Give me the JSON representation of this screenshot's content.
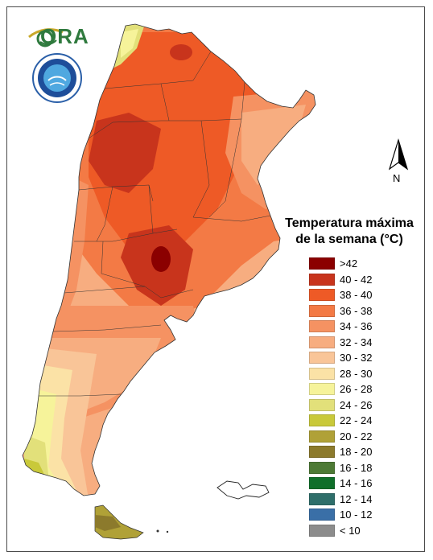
{
  "map": {
    "title": "Temperatura máxima\nde la semana (°C)",
    "north_label": "N",
    "logos": {
      "ora_text": "ORA",
      "smn_icon": "smn-seal-icon"
    },
    "legend": [
      {
        "label": ">42",
        "color": "#8b0000"
      },
      {
        "label": "40 - 42",
        "color": "#c8341c"
      },
      {
        "label": "38 - 40",
        "color": "#ee5a26"
      },
      {
        "label": "36 - 38",
        "color": "#f37a45"
      },
      {
        "label": "34 - 36",
        "color": "#f59262"
      },
      {
        "label": "32 - 34",
        "color": "#f7ad80"
      },
      {
        "label": "30 - 32",
        "color": "#f9c598"
      },
      {
        "label": "28 - 30",
        "color": "#fbe2a6"
      },
      {
        "label": "26 - 28",
        "color": "#f6f39a"
      },
      {
        "label": "24 - 26",
        "color": "#e2e07a"
      },
      {
        "label": "22 - 24",
        "color": "#c9c93a"
      },
      {
        "label": "20 - 22",
        "color": "#b0a137"
      },
      {
        "label": "18 - 20",
        "color": "#8c7a2c"
      },
      {
        "label": "16 - 18",
        "color": "#4d7a35"
      },
      {
        "label": "14 - 16",
        "color": "#0f6f2a"
      },
      {
        "label": "12 - 14",
        "color": "#2e6e6a"
      },
      {
        "label": "10 - 12",
        "color": "#3a6fa7"
      },
      {
        "label": "< 10",
        "color": "#8c8c8c"
      }
    ]
  }
}
